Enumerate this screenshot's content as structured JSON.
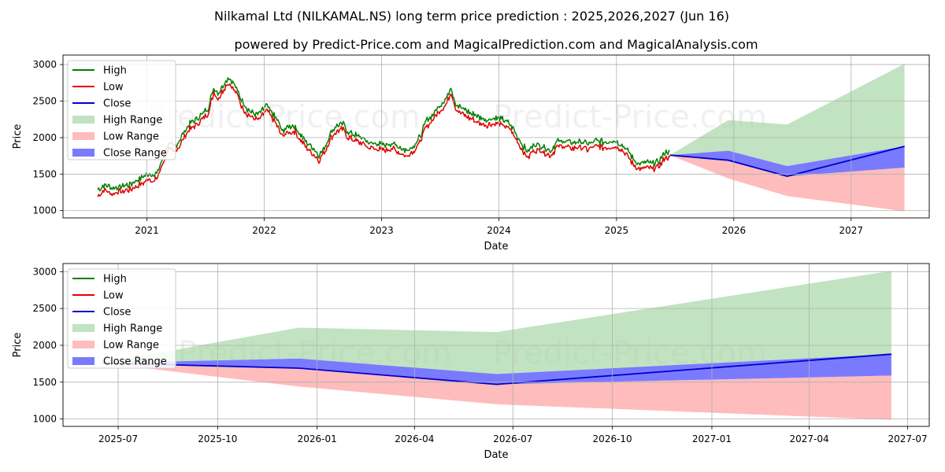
{
  "title": "Nilkamal Ltd (NILKAMAL.NS) long term price prediction : 2025,2026,2027 (Jun 16)",
  "subtitle": "powered by Predict-Price.com and MagicalPrediction.com and MagicalAnalysis.com",
  "watermark": "Predict-Price.com",
  "colors": {
    "high": "#008000",
    "low": "#e00000",
    "close": "#0000cc",
    "high_range": "#9fd49f",
    "low_range": "#ffb0b0",
    "close_range": "#6b6bff"
  },
  "legend": [
    "High",
    "Low",
    "Close",
    "High Range",
    "Low Range",
    "Close Range"
  ],
  "chart_data": [
    {
      "type": "line",
      "name": "full-history",
      "xlabel": "Date",
      "ylabel": "Price",
      "x_ticks": [
        "2021",
        "2022",
        "2023",
        "2024",
        "2025",
        "2026",
        "2027"
      ],
      "y_ticks": [
        1000,
        1500,
        2000,
        2500,
        3000
      ],
      "xlim": [
        "2020-04-15",
        "2027-09-01"
      ],
      "ylim": [
        900,
        3130
      ],
      "grid": true,
      "legend_position": "top-left",
      "history_close": [
        [
          "2020-08-01",
          1240
        ],
        [
          "2020-08-20",
          1310
        ],
        [
          "2020-09-15",
          1270
        ],
        [
          "2020-10-15",
          1290
        ],
        [
          "2020-11-15",
          1330
        ],
        [
          "2020-12-15",
          1400
        ],
        [
          "2021-01-10",
          1480
        ],
        [
          "2021-01-25",
          1420
        ],
        [
          "2021-02-10",
          1560
        ],
        [
          "2021-02-25",
          1750
        ],
        [
          "2021-03-10",
          1880
        ],
        [
          "2021-03-25",
          1830
        ],
        [
          "2021-04-10",
          1900
        ],
        [
          "2021-04-25",
          2020
        ],
        [
          "2021-05-15",
          2150
        ],
        [
          "2021-06-01",
          2200
        ],
        [
          "2021-06-20",
          2280
        ],
        [
          "2021-07-10",
          2350
        ],
        [
          "2021-07-28",
          2650
        ],
        [
          "2021-08-10",
          2560
        ],
        [
          "2021-08-25",
          2680
        ],
        [
          "2021-09-10",
          2780
        ],
        [
          "2021-09-25",
          2720
        ],
        [
          "2021-10-10",
          2600
        ],
        [
          "2021-10-25",
          2450
        ],
        [
          "2021-11-10",
          2350
        ],
        [
          "2021-11-25",
          2300
        ],
        [
          "2021-12-15",
          2280
        ],
        [
          "2022-01-10",
          2400
        ],
        [
          "2022-01-25",
          2300
        ],
        [
          "2022-02-10",
          2200
        ],
        [
          "2022-02-25",
          2050
        ],
        [
          "2022-03-15",
          2100
        ],
        [
          "2022-04-05",
          2120
        ],
        [
          "2022-04-25",
          2000
        ],
        [
          "2022-05-15",
          1880
        ],
        [
          "2022-06-01",
          1820
        ],
        [
          "2022-06-20",
          1720
        ],
        [
          "2022-07-10",
          1850
        ],
        [
          "2022-07-28",
          2030
        ],
        [
          "2022-08-15",
          2120
        ],
        [
          "2022-09-01",
          2150
        ],
        [
          "2022-09-20",
          2030
        ],
        [
          "2022-10-10",
          2000
        ],
        [
          "2022-10-30",
          1960
        ],
        [
          "2022-11-20",
          1900
        ],
        [
          "2022-12-15",
          1880
        ],
        [
          "2023-01-10",
          1860
        ],
        [
          "2023-02-01",
          1880
        ],
        [
          "2023-02-25",
          1830
        ],
        [
          "2023-03-20",
          1780
        ],
        [
          "2023-04-10",
          1850
        ],
        [
          "2023-04-30",
          1960
        ],
        [
          "2023-05-20",
          2180
        ],
        [
          "2023-06-10",
          2280
        ],
        [
          "2023-06-30",
          2400
        ],
        [
          "2023-07-20",
          2480
        ],
        [
          "2023-08-05",
          2650
        ],
        [
          "2023-08-20",
          2420
        ],
        [
          "2023-09-10",
          2350
        ],
        [
          "2023-10-01",
          2300
        ],
        [
          "2023-10-25",
          2250
        ],
        [
          "2023-11-20",
          2200
        ],
        [
          "2023-12-20",
          2230
        ],
        [
          "2024-01-15",
          2200
        ],
        [
          "2024-02-05",
          2150
        ],
        [
          "2024-02-25",
          2000
        ],
        [
          "2024-03-15",
          1850
        ],
        [
          "2024-04-01",
          1760
        ],
        [
          "2024-04-20",
          1870
        ],
        [
          "2024-05-15",
          1850
        ],
        [
          "2024-06-10",
          1780
        ],
        [
          "2024-06-30",
          1900
        ],
        [
          "2024-07-20",
          1920
        ],
        [
          "2024-08-15",
          1880
        ],
        [
          "2024-09-10",
          1900
        ],
        [
          "2024-10-05",
          1870
        ],
        [
          "2024-10-30",
          1920
        ],
        [
          "2024-11-25",
          1890
        ],
        [
          "2024-12-20",
          1920
        ],
        [
          "2025-01-15",
          1880
        ],
        [
          "2025-02-05",
          1770
        ],
        [
          "2025-02-25",
          1650
        ],
        [
          "2025-03-15",
          1600
        ],
        [
          "2025-04-05",
          1620
        ],
        [
          "2025-04-25",
          1600
        ],
        [
          "2025-05-15",
          1640
        ],
        [
          "2025-06-01",
          1760
        ],
        [
          "2025-06-16",
          1760
        ]
      ],
      "history_spread": 55,
      "forecast": {
        "dates": [
          "2025-06-16",
          "2025-12-15",
          "2026-06-16",
          "2027-06-16"
        ],
        "high_upper": [
          1760,
          2240,
          2180,
          3010
        ],
        "low_lower": [
          1760,
          1440,
          1200,
          990
        ],
        "close_upper": [
          1760,
          1820,
          1610,
          1880
        ],
        "close_lower": [
          1760,
          1690,
          1470,
          1590
        ],
        "close": [
          1760,
          1690,
          1470,
          1880
        ]
      }
    },
    {
      "type": "area",
      "name": "forecast-zoom",
      "xlabel": "Date",
      "ylabel": "Price",
      "x_ticks": [
        "2025-07",
        "2025-10",
        "2026-01",
        "2026-04",
        "2026-07",
        "2026-10",
        "2027-01",
        "2027-04",
        "2027-07"
      ],
      "y_ticks": [
        1000,
        1500,
        2000,
        2500,
        3000
      ],
      "xlim": [
        "2025-05-11",
        "2027-07-21"
      ],
      "ylim": [
        900,
        3110
      ],
      "grid": true,
      "legend_position": "top-left",
      "forecast": {
        "dates": [
          "2025-06-16",
          "2025-12-15",
          "2026-06-16",
          "2027-06-16"
        ],
        "high_upper": [
          1760,
          2240,
          2180,
          3010
        ],
        "low_lower": [
          1760,
          1440,
          1200,
          990
        ],
        "close_upper": [
          1760,
          1820,
          1610,
          1880
        ],
        "close_lower": [
          1760,
          1690,
          1470,
          1590
        ],
        "close": [
          1760,
          1690,
          1470,
          1880
        ]
      }
    }
  ]
}
